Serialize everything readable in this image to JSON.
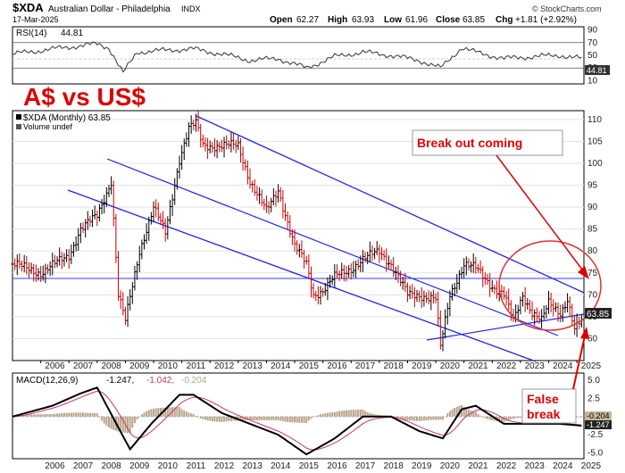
{
  "header": {
    "symbol": "$XDA",
    "name": "Australian Dollar - Philadelphia",
    "exchange": "INDX",
    "date": "17-Mar-2025",
    "open_label": "Open",
    "open": "62.27",
    "high_label": "High",
    "high": "63.93",
    "low_label": "Low",
    "low": "61.96",
    "close_label": "Close",
    "close": "63.85",
    "chg_label": "Chg",
    "chg": "+1.81 (+2.92%)",
    "credit": "© StockCharts.com"
  },
  "rsi_panel": {
    "label": "RSI(14)",
    "value": "44.81",
    "last_badge": "44.81",
    "ticks": [
      "90",
      "70",
      "50",
      "30",
      "10"
    ]
  },
  "price_panel": {
    "title_overlay": "A$  vs US$",
    "legend_label": "$XDA (Monthly) 63.85",
    "volume_label": "Volume undef",
    "last_badge": "63.85",
    "ticks": [
      "110",
      "105",
      "100",
      "95",
      "90",
      "85",
      "80",
      "75",
      "70",
      "65",
      "60"
    ],
    "note_break": "Break out coming",
    "note_false_line1": "False",
    "note_false_line2": "break"
  },
  "macd_panel": {
    "label": "MACD(12,26,9)",
    "v1": "-1.247,",
    "v2": "-1.042,",
    "v3": "-0.204",
    "badge_hist": "-0.204",
    "badge_macd": "-1.247",
    "ticks": [
      "5.0",
      "2.5",
      "0.0",
      "-2.5",
      "-5.0"
    ]
  },
  "years": [
    "2006",
    "2007",
    "2008",
    "2009",
    "2010",
    "2011",
    "2012",
    "2013",
    "2014",
    "2015",
    "2016",
    "2017",
    "2018",
    "2019",
    "2020",
    "2021",
    "2022",
    "2023",
    "2024",
    "2025"
  ],
  "colors": {
    "price_bar": "#000000",
    "down_bar": "#cc0000",
    "trend_channel": "#1a1aff",
    "annotation": "#e00000",
    "macd_line": "#000000",
    "signal_line": "#cc3366",
    "histogram": "#b8a48a"
  },
  "chart_data": [
    {
      "type": "line",
      "panel": "price",
      "title": "$XDA (Monthly)",
      "x": [
        "2005-01",
        "2006-01",
        "2007-01",
        "2007-06",
        "2008-01",
        "2008-07",
        "2008-10",
        "2009-01",
        "2009-07",
        "2010-01",
        "2010-06",
        "2010-12",
        "2011-04",
        "2011-07",
        "2011-10",
        "2012-04",
        "2012-08",
        "2013-01",
        "2013-06",
        "2014-01",
        "2014-06",
        "2015-01",
        "2015-06",
        "2015-09",
        "2016-01",
        "2016-06",
        "2017-01",
        "2017-06",
        "2018-01",
        "2018-06",
        "2019-01",
        "2019-06",
        "2020-01",
        "2020-03",
        "2020-07",
        "2021-01",
        "2021-06",
        "2022-01",
        "2022-06",
        "2022-10",
        "2023-02",
        "2023-06",
        "2023-10",
        "2024-01",
        "2024-06",
        "2024-09",
        "2024-12",
        "2025-03"
      ],
      "y": [
        77,
        75,
        79,
        85,
        88,
        96,
        70,
        64,
        80,
        90,
        84,
        101,
        108,
        109,
        104,
        104,
        104,
        104,
        96,
        89,
        94,
        81,
        77,
        70,
        71,
        74,
        76,
        78,
        80,
        77,
        70,
        70,
        69,
        58,
        70,
        77,
        76,
        72,
        70,
        64,
        70,
        66,
        64,
        68,
        66,
        69,
        62,
        63.85
      ],
      "ylim": [
        55,
        112
      ]
    },
    {
      "type": "line",
      "panel": "rsi",
      "name": "RSI(14)",
      "x": [
        "2005-01",
        "2006-06",
        "2008-01",
        "2008-06",
        "2008-12",
        "2009-06",
        "2010-06",
        "2011-06",
        "2012-06",
        "2013-06",
        "2014-06",
        "2015-06",
        "2016-06",
        "2017-06",
        "2018-06",
        "2019-06",
        "2020-03",
        "2020-12",
        "2021-06",
        "2022-06",
        "2023-06",
        "2024-06",
        "2025-03"
      ],
      "y": [
        52,
        60,
        68,
        62,
        22,
        55,
        58,
        60,
        52,
        42,
        45,
        30,
        48,
        55,
        50,
        42,
        30,
        62,
        55,
        45,
        48,
        50,
        44.81
      ],
      "ylim": [
        5,
        95
      ]
    },
    {
      "type": "line",
      "panel": "macd",
      "name": "MACD(12,26,9)",
      "x": [
        "2005-01",
        "2006-06",
        "2007-06",
        "2008-01",
        "2008-10",
        "2009-03",
        "2009-12",
        "2010-12",
        "2011-06",
        "2012-06",
        "2013-06",
        "2014-06",
        "2015-06",
        "2016-06",
        "2017-06",
        "2018-06",
        "2019-06",
        "2020-04",
        "2020-12",
        "2021-06",
        "2022-06",
        "2023-06",
        "2024-06",
        "2025-03"
      ],
      "y": [
        0,
        1.5,
        3.2,
        4.0,
        -1.5,
        -4.5,
        -1.0,
        3.0,
        3.0,
        0.5,
        -1.0,
        -2.5,
        -5.2,
        -3.0,
        0,
        0,
        -2.0,
        -3.0,
        1.0,
        1.5,
        -1.0,
        -1.0,
        -1.0,
        -1.247
      ],
      "ylim": [
        -5.8,
        6
      ]
    }
  ]
}
